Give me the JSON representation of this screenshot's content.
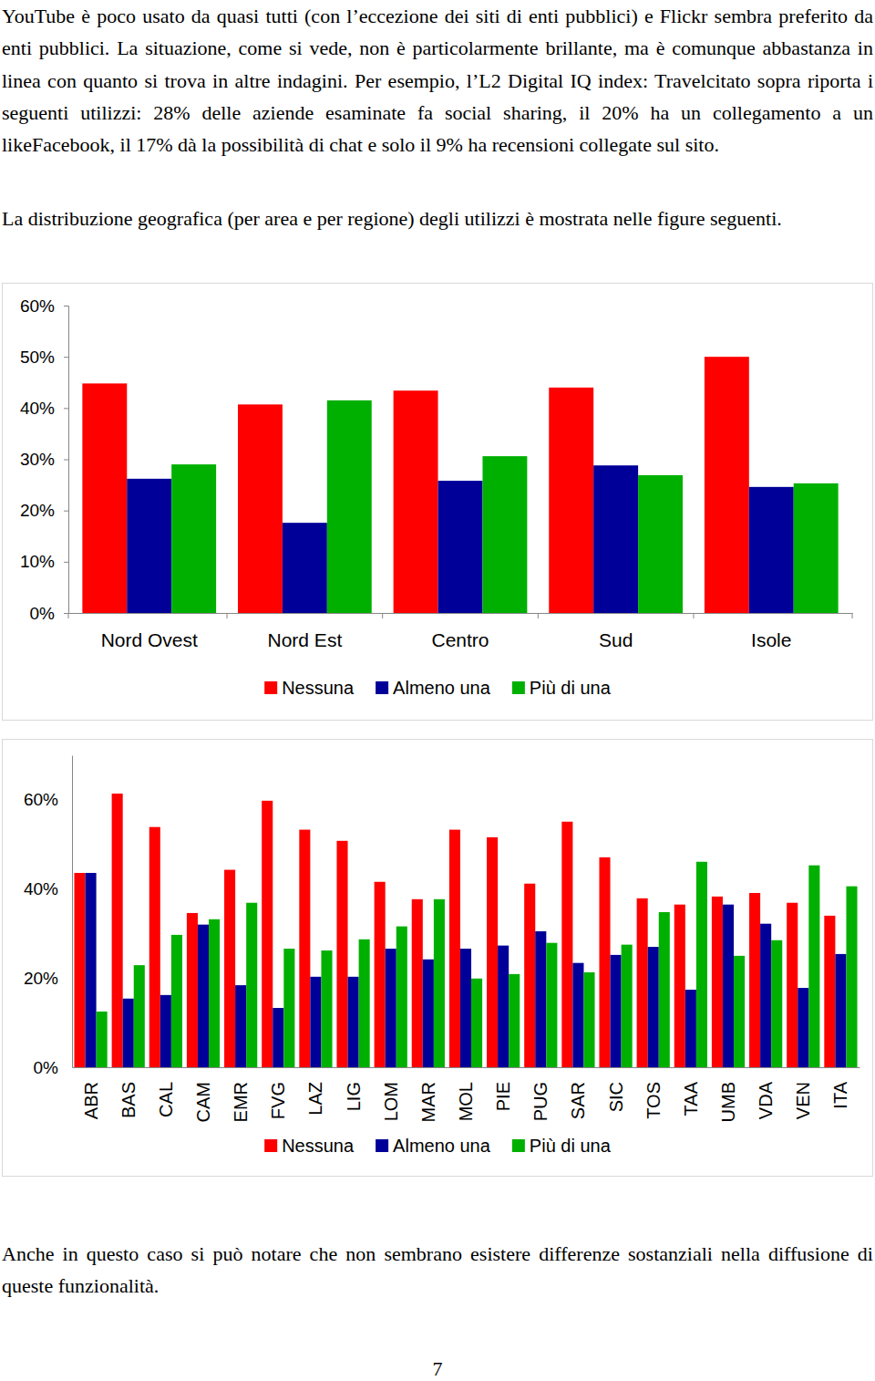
{
  "paragraphs": [
    "YouTube è poco usato da quasi tutti (con l’eccezione dei siti di enti pubblici) e Flickr sembra preferito da enti pubblici. La situazione, come si vede, non è particolarmente brillante, ma è comunque abbastanza in linea con quanto si trova in altre indagini. Per esempio, l’L2 Digital IQ index: Travelcitato sopra riporta i seguenti utilizzi: 28% delle aziende esaminate fa social sharing, il 20% ha un collegamento a un likeFacebook, il 17% dà la possibilità di chat e solo il 9% ha recensioni collegate sul sito.",
    "La distribuzione geografica (per area e per regione) degli utilizzi è mostrata nelle figure seguenti."
  ],
  "chart_data": [
    {
      "type": "bar",
      "categories": [
        "Nord Ovest",
        "Nord Est",
        "Centro",
        "Sud",
        "Isole"
      ],
      "series": [
        {
          "name": "Nessuna",
          "color": "#ff0000",
          "values": [
            44.8,
            40.7,
            43.4,
            44.0,
            50.0
          ]
        },
        {
          "name": "Almeno una",
          "color": "#000099",
          "values": [
            26.2,
            17.6,
            25.8,
            28.8,
            24.6
          ]
        },
        {
          "name": "Più di una",
          "color": "#00b000",
          "values": [
            29.0,
            41.5,
            30.6,
            26.9,
            25.3
          ]
        }
      ],
      "ylim": [
        0,
        60
      ],
      "yticks": [
        {
          "value": 0,
          "label": "0%"
        },
        {
          "value": 10,
          "label": "10%"
        },
        {
          "value": 20,
          "label": "20%"
        },
        {
          "value": 30,
          "label": "30%"
        },
        {
          "value": 40,
          "label": "40%"
        },
        {
          "value": 50,
          "label": "50%"
        },
        {
          "value": 60,
          "label": "60%"
        }
      ],
      "legend": "bottom"
    },
    {
      "type": "bar",
      "categories": [
        "ABR",
        "BAS",
        "CAL",
        "CAM",
        "EMR",
        "FVG",
        "LAZ",
        "LIG",
        "LOM",
        "MAR",
        "MOL",
        "PIE",
        "PUG",
        "SAR",
        "SIC",
        "TOS",
        "TAA",
        "UMB",
        "VDA",
        "VEN",
        "ITA"
      ],
      "series": [
        {
          "name": "Nessuna",
          "color": "#ff0000",
          "values": [
            43.6,
            61.4,
            53.9,
            34.6,
            44.3,
            59.8,
            53.3,
            50.8,
            41.6,
            37.7,
            53.3,
            51.6,
            41.2,
            55.1,
            47.1,
            37.9,
            36.5,
            38.3,
            39.1,
            36.9,
            34.0
          ]
        },
        {
          "name": "Almeno una",
          "color": "#000099",
          "values": [
            43.6,
            15.4,
            16.2,
            32.0,
            18.4,
            13.3,
            20.3,
            20.3,
            26.6,
            24.2,
            26.6,
            27.3,
            30.5,
            23.4,
            25.2,
            27.0,
            17.4,
            36.5,
            32.2,
            17.8,
            25.4
          ]
        },
        {
          "name": "Più di una",
          "color": "#00b000",
          "values": [
            12.5,
            22.9,
            29.7,
            33.2,
            36.9,
            26.6,
            26.2,
            28.7,
            31.6,
            37.7,
            19.9,
            20.9,
            27.9,
            21.3,
            27.5,
            34.8,
            46.1,
            25.0,
            28.5,
            45.3,
            40.6
          ]
        }
      ],
      "ylim": [
        0,
        70
      ],
      "yticks": [
        {
          "value": 0,
          "label": "0%"
        },
        {
          "value": 20,
          "label": "20%"
        },
        {
          "value": 40,
          "label": "40%"
        },
        {
          "value": 60,
          "label": "60%"
        }
      ],
      "legend": "bottom"
    }
  ],
  "closing": "Anche in questo caso si può notare che non sembrano esistere differenze sostanziali nella diffusione di queste funzionalità.",
  "page_number": "7"
}
